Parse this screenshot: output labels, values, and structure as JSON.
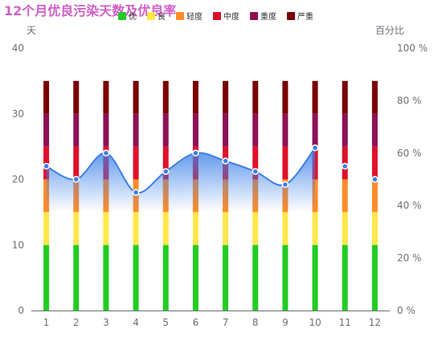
{
  "chart_data": {
    "type": "bar",
    "title": "12个月优良污染天数及优良率",
    "y_left_label": "天",
    "y_right_label": "百分比",
    "categories": [
      "1",
      "2",
      "3",
      "4",
      "5",
      "6",
      "7",
      "8",
      "9",
      "10",
      "11",
      "12"
    ],
    "y_left_ticks": [
      "0",
      "10",
      "20",
      "30",
      "40"
    ],
    "y_right_ticks": [
      "0 %",
      "20 %",
      "40 %",
      "60 %",
      "80 %",
      "100 %"
    ],
    "ylim_left": [
      0,
      40
    ],
    "ylim_right": [
      0,
      100
    ],
    "legend_position": "top",
    "series": [
      {
        "name": "优",
        "color": "#22cc22",
        "values": [
          10,
          10,
          10,
          10,
          10,
          10,
          10,
          10,
          10,
          10,
          10,
          10
        ]
      },
      {
        "name": "良",
        "color": "#ffe84a",
        "values": [
          5,
          5,
          5,
          5,
          5,
          5,
          5,
          5,
          5,
          5,
          5,
          5
        ]
      },
      {
        "name": "轻度",
        "color": "#ff8c2a",
        "values": [
          5,
          5,
          5,
          5,
          5,
          5,
          5,
          5,
          5,
          5,
          5,
          5
        ]
      },
      {
        "name": "中度",
        "color": "#e0102a",
        "values": [
          5,
          5,
          5,
          5,
          5,
          5,
          5,
          5,
          5,
          5,
          5,
          5
        ]
      },
      {
        "name": "重度",
        "color": "#8e1155",
        "values": [
          5,
          5,
          5,
          5,
          5,
          5,
          5,
          5,
          5,
          5,
          5,
          5
        ]
      },
      {
        "name": "严重",
        "color": "#7a0000",
        "values": [
          5,
          5,
          5,
          5,
          5,
          5,
          5,
          5,
          5,
          5,
          5,
          5
        ]
      }
    ],
    "line": {
      "name": "优良率",
      "color": "#3a7fe8",
      "values": [
        55,
        50,
        60,
        45,
        53,
        60,
        57,
        53,
        48,
        62,
        55,
        50
      ],
      "smooth_segments_to": 10
    },
    "grid": false
  }
}
